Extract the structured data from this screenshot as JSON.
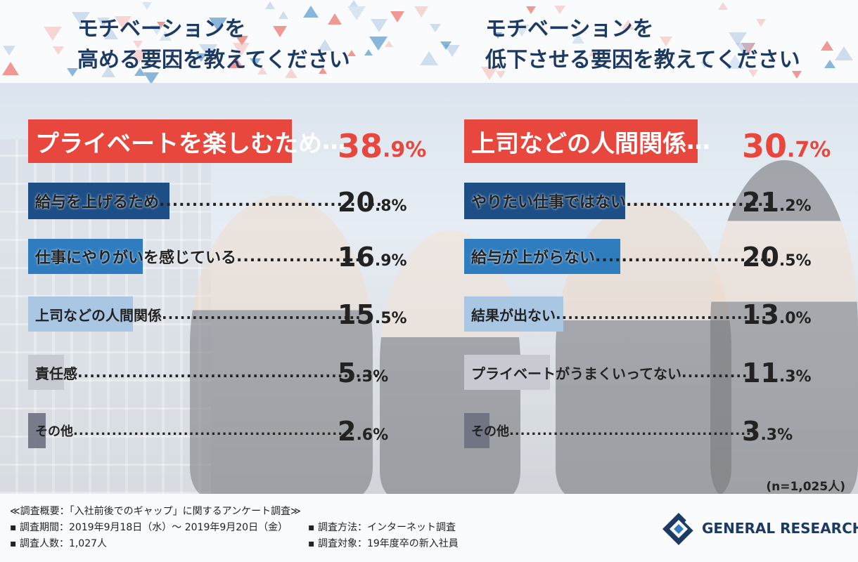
{
  "left_title": "モチベーションを\n高める要因を教えてください",
  "right_title": "モチベーションを\n低下させる要因を教えてください",
  "n_note": "(n=1,025人)",
  "footer": {
    "line1": "≪調査概要：「入社前後でのギャップ」に関するアンケート調査≫",
    "line2a": "▪ 調査期間：2019年9月18日（水）～ 2019年9月20日（金）",
    "line2b": "▪ 調査方法：インターネット調査",
    "line3a": "▪ 調査人数：1,027人",
    "line3b": "▪ 調査対象：19年度卒の新入社員"
  },
  "logo_text": "GENERAL RESEARCH",
  "colors": {
    "red": "#e8473e",
    "navy": "#1d4f86",
    "blue": "#2f7dbf",
    "lightblue": "#a9c6e2",
    "gray": "#c7cbd1",
    "darkgray": "#6b7080"
  },
  "chart_data": [
    {
      "type": "bar",
      "title": "モチベーションを高める要因を教えてください",
      "unit": "%",
      "categories": [
        "プライベートを楽しむため",
        "給与を上げるため",
        "仕事にやりがいを感じている",
        "上司などの人間関係",
        "責任感",
        "その他"
      ],
      "values": [
        38.9,
        20.8,
        16.9,
        15.5,
        5.3,
        2.6
      ],
      "value_labels": [
        [
          "38",
          ".9%"
        ],
        [
          "20",
          ".8%"
        ],
        [
          "16",
          ".9%"
        ],
        [
          "15",
          ".5%"
        ],
        [
          "5",
          ".3%"
        ],
        [
          "2",
          ".6%"
        ]
      ]
    },
    {
      "type": "bar",
      "title": "モチベーションを低下させる要因を教えてください",
      "unit": "%",
      "categories": [
        "上司などの人間関係",
        "やりたい仕事ではない",
        "給与が上がらない",
        "結果が出ない",
        "プライベートがうまくいってない",
        "その他"
      ],
      "values": [
        30.7,
        21.2,
        20.5,
        13.0,
        11.3,
        3.3
      ],
      "value_labels": [
        [
          "30",
          ".7%"
        ],
        [
          "21",
          ".2%"
        ],
        [
          "20",
          ".5%"
        ],
        [
          "13",
          ".0%"
        ],
        [
          "11",
          ".3%"
        ],
        [
          "3",
          ".3%"
        ]
      ]
    }
  ]
}
